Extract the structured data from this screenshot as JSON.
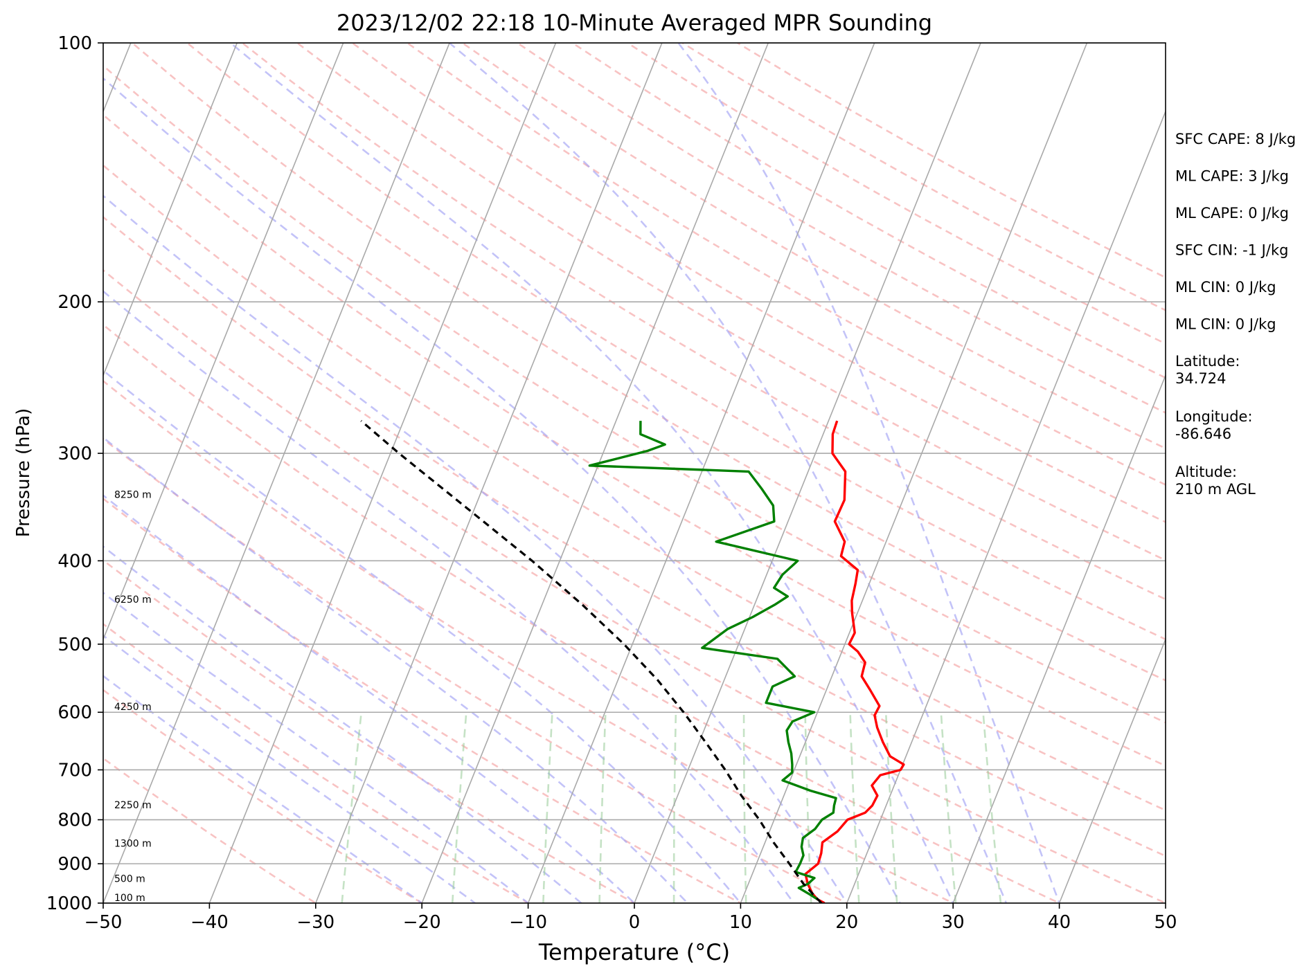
{
  "chart_data": {
    "type": "line",
    "title": "2023/12/02 22:18 10-Minute Averaged MPR Sounding",
    "xlabel": "Temperature (°C)",
    "ylabel": "Pressure (hPa)",
    "xlim": [
      -50,
      50
    ],
    "ylim": [
      1000,
      100
    ],
    "yscale": "log",
    "skew": true,
    "x_ticks": [
      -50,
      -40,
      -30,
      -20,
      -10,
      0,
      10,
      20,
      30,
      40,
      50
    ],
    "x_tick_labels": [
      "−50",
      "−40",
      "−30",
      "−20",
      "−10",
      "0",
      "10",
      "20",
      "30",
      "40",
      "50"
    ],
    "y_ticks": [
      1000,
      900,
      800,
      700,
      600,
      500,
      400,
      300,
      200,
      100
    ],
    "y_tick_labels": [
      "1000",
      "900",
      "800",
      "700",
      "600",
      "500",
      "400",
      "300",
      "200",
      "100"
    ],
    "grid": true,
    "series": [
      {
        "color": "#ff0000",
        "points": [
          [
            1000,
            17.9
          ],
          [
            990,
            17.1
          ],
          [
            975,
            16.4
          ],
          [
            950,
            15.6
          ],
          [
            925,
            15.0
          ],
          [
            900,
            15.8
          ],
          [
            875,
            15.7
          ],
          [
            850,
            15.4
          ],
          [
            825,
            16.4
          ],
          [
            800,
            16.9
          ],
          [
            785,
            18.3
          ],
          [
            770,
            18.7
          ],
          [
            750,
            18.8
          ],
          [
            730,
            17.9
          ],
          [
            710,
            18.3
          ],
          [
            700,
            20.0
          ],
          [
            690,
            20.1
          ],
          [
            675,
            18.5
          ],
          [
            650,
            17.3
          ],
          [
            625,
            16.2
          ],
          [
            605,
            15.5
          ],
          [
            590,
            15.6
          ],
          [
            565,
            14.1
          ],
          [
            545,
            12.8
          ],
          [
            525,
            12.6
          ],
          [
            510,
            11.5
          ],
          [
            500,
            10.4
          ],
          [
            485,
            10.5
          ],
          [
            460,
            9.5
          ],
          [
            445,
            9.0
          ],
          [
            425,
            8.7
          ],
          [
            410,
            8.4
          ],
          [
            395,
            6.3
          ],
          [
            380,
            6.1
          ],
          [
            360,
            4.4
          ],
          [
            340,
            4.5
          ],
          [
            315,
            3.5
          ],
          [
            300,
            1.6
          ],
          [
            285,
            0.9
          ],
          [
            275,
            0.8
          ]
        ]
      },
      {
        "color": "#008000",
        "points": [
          [
            990,
            17.1
          ],
          [
            980,
            16.4
          ],
          [
            960,
            14.9
          ],
          [
            950,
            15.6
          ],
          [
            935,
            16.0
          ],
          [
            920,
            14.0
          ],
          [
            900,
            14.1
          ],
          [
            880,
            14.1
          ],
          [
            860,
            13.6
          ],
          [
            840,
            13.4
          ],
          [
            820,
            14.2
          ],
          [
            800,
            14.5
          ],
          [
            785,
            15.3
          ],
          [
            770,
            15.1
          ],
          [
            755,
            15.0
          ],
          [
            740,
            12.3
          ],
          [
            720,
            9.3
          ],
          [
            705,
            9.9
          ],
          [
            690,
            9.6
          ],
          [
            670,
            9.1
          ],
          [
            650,
            8.4
          ],
          [
            630,
            7.8
          ],
          [
            615,
            8.0
          ],
          [
            600,
            9.7
          ],
          [
            585,
            4.8
          ],
          [
            560,
            4.8
          ],
          [
            545,
            6.5
          ],
          [
            520,
            4.2
          ],
          [
            505,
            -3.3
          ],
          [
            480,
            -1.6
          ],
          [
            465,
            0.3
          ],
          [
            450,
            1.9
          ],
          [
            440,
            2.8
          ],
          [
            430,
            1.2
          ],
          [
            415,
            1.5
          ],
          [
            400,
            2.4
          ],
          [
            380,
            -6.0
          ],
          [
            360,
            -1.3
          ],
          [
            345,
            -2.0
          ],
          [
            330,
            -3.7
          ],
          [
            315,
            -5.6
          ],
          [
            310,
            -20.8
          ],
          [
            298,
            -15.9
          ],
          [
            293,
            -14.5
          ],
          [
            285,
            -17.2
          ],
          [
            275,
            -17.7
          ]
        ]
      },
      {
        "color": "#000000",
        "dash": true,
        "points": [
          [
            1000,
            17.6
          ],
          [
            950,
            15.2
          ],
          [
            900,
            13.1
          ],
          [
            850,
            10.8
          ],
          [
            800,
            8.6
          ],
          [
            750,
            6.0
          ],
          [
            700,
            3.5
          ],
          [
            650,
            0.6
          ],
          [
            600,
            -2.6
          ],
          [
            550,
            -6.3
          ],
          [
            500,
            -10.8
          ],
          [
            450,
            -16.2
          ],
          [
            400,
            -22.6
          ],
          [
            350,
            -30.3
          ],
          [
            300,
            -39.2
          ],
          [
            275,
            -44.0
          ]
        ]
      }
    ],
    "height_labels": [
      {
        "pressure": 1000,
        "label": "100 m"
      },
      {
        "pressure": 950,
        "label": "500 m"
      },
      {
        "pressure": 865,
        "label": "1300 m"
      },
      {
        "pressure": 780,
        "label": "2250 m"
      },
      {
        "pressure": 600,
        "label": "4250 m"
      },
      {
        "pressure": 450,
        "label": "6250 m"
      },
      {
        "pressure": 340,
        "label": "8250 m"
      }
    ],
    "annotations": [
      "SFC CAPE: 8 J/kg",
      "ML CAPE: 3 J/kg",
      "ML CAPE: 0 J/kg",
      "SFC CIN: -1 J/kg",
      "ML CIN: 0 J/kg",
      "ML CIN: 0 J/kg",
      "Latitude:\n34.724",
      "Longitude:\n-86.646",
      "Altitude:\n210 m AGL"
    ]
  }
}
